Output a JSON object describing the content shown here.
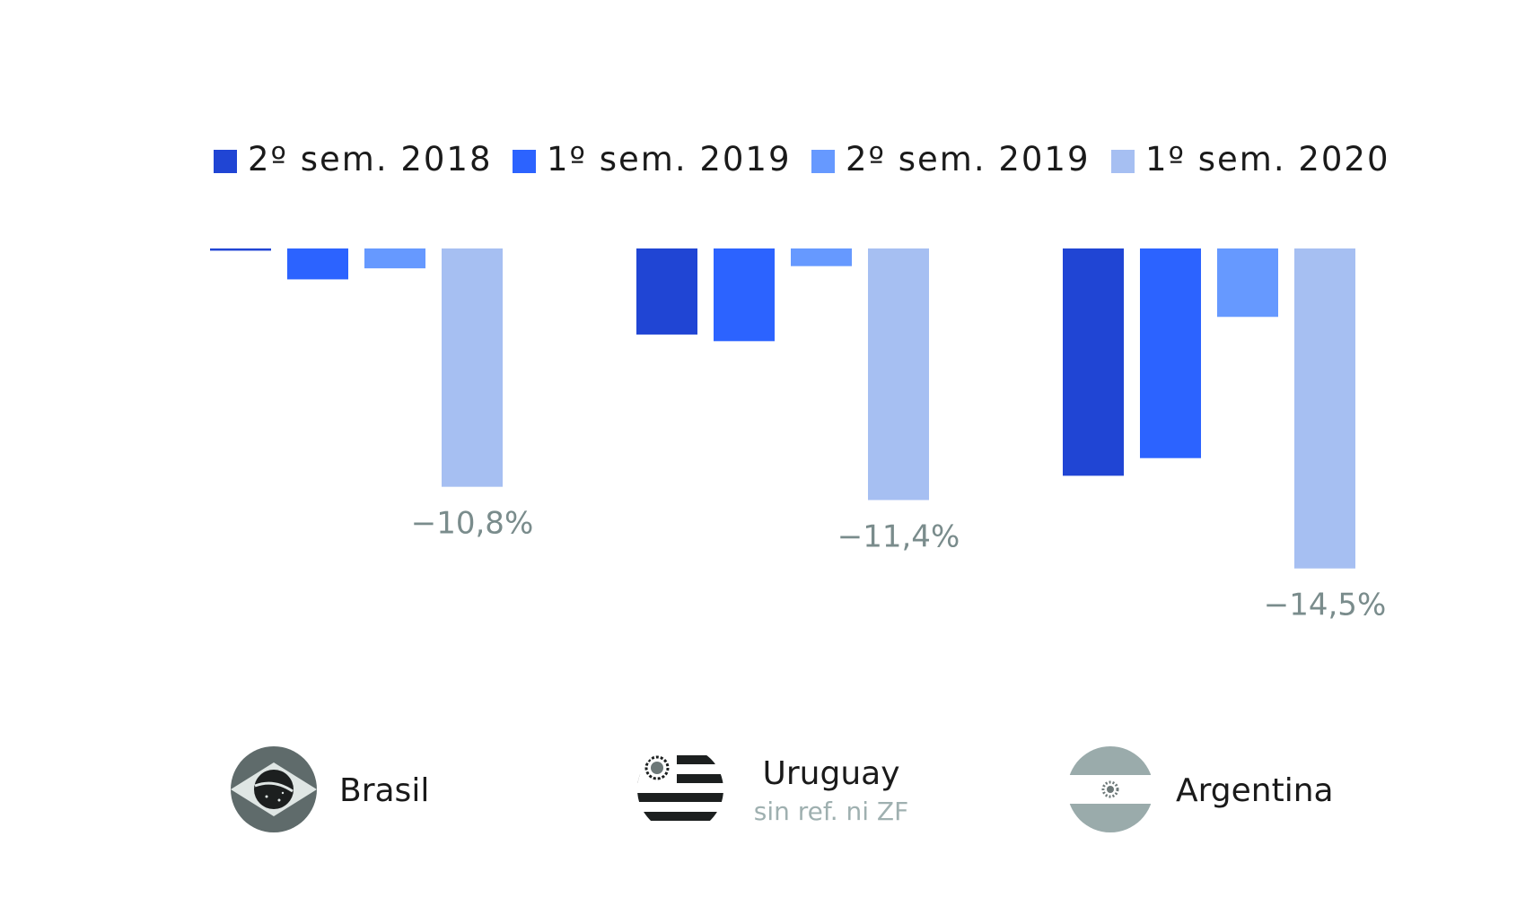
{
  "chart_data": {
    "type": "bar",
    "categories": [
      "Brasil",
      "Uruguay",
      "Argentina"
    ],
    "category_subtitles": [
      "",
      "sin ref. ni ZF",
      ""
    ],
    "series": [
      {
        "name": "2º sem. 2018",
        "color": "#2045d4",
        "values": [
          -0.1,
          -3.9,
          -10.3
        ]
      },
      {
        "name": "1º sem. 2019",
        "color": "#2c63ff",
        "values": [
          -1.4,
          -4.2,
          -9.5
        ]
      },
      {
        "name": "2º sem. 2019",
        "color": "#6699ff",
        "values": [
          -0.9,
          -0.8,
          -3.1
        ]
      },
      {
        "name": "1º sem. 2020",
        "color": "#a6bff2",
        "values": [
          -10.8,
          -11.4,
          -14.5
        ]
      }
    ],
    "data_labels": [
      "−10,8%",
      "−11,4%",
      "−14,5%"
    ],
    "ylim": [
      -16,
      0
    ],
    "grid": false,
    "legend_position": "top",
    "flag_icons": [
      "brazil-flag-icon",
      "uruguay-flag-icon",
      "argentina-flag-icon"
    ]
  }
}
